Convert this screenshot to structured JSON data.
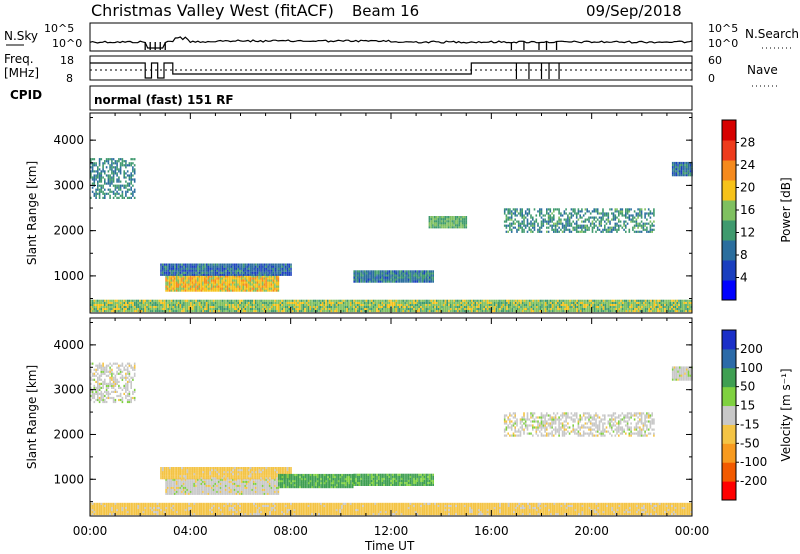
{
  "header": {
    "title": "Christmas Valley West (fitACF)",
    "beam": "Beam 16",
    "date": "09/Sep/2018"
  },
  "status_panels": {
    "nsky_label": "N.Sky",
    "nsky_ticks": [
      "10^5",
      "10^0"
    ],
    "nsearch_label": "N.Search",
    "nsearch_ticks": [
      "10^5",
      "10^0"
    ],
    "freq_label": [
      "Freq.",
      "[MHz]"
    ],
    "freq_ticks": [
      "18",
      "8"
    ],
    "nave_label": "Nave",
    "nave_ticks": [
      "60",
      "0"
    ],
    "cpid_label": "CPID",
    "cpid_value": "normal (fast) 151 RF"
  },
  "colors": {
    "power": [
      "#0000ff",
      "#1a3fbf",
      "#2b6e9e",
      "#3f9a6e",
      "#7fc060",
      "#f6c21a",
      "#f58a1d",
      "#ee3b1c",
      "#d60000"
    ],
    "velocity": [
      "#ff0000",
      "#f25a00",
      "#f79a1f",
      "#f4c445",
      "#c8c8c8",
      "#7fd140",
      "#3f9f52",
      "#2b6aa8",
      "#1a2fc8"
    ]
  },
  "chart_data": [
    {
      "type": "heatmap",
      "panel": "power",
      "ylabel": "Slant Range [km]",
      "xlabel": "Time UT",
      "x_ticks": [
        "00:00",
        "04:00",
        "08:00",
        "12:00",
        "16:00",
        "20:00",
        "00:00"
      ],
      "xlim_hours": [
        0,
        24
      ],
      "y_ticks": [
        1000,
        2000,
        3000,
        4000
      ],
      "ylim": [
        180,
        4600
      ],
      "colorbar_label": "Power [dB]",
      "colorbar_ticks": [
        4,
        8,
        12,
        16,
        20,
        24,
        28
      ],
      "colorbar_range": [
        0,
        32
      ],
      "features": [
        {
          "t": [
            0.0,
            1.8
          ],
          "r": [
            2700,
            3600
          ],
          "level": 12
        },
        {
          "t": [
            3.0,
            7.5
          ],
          "r": [
            650,
            1000
          ],
          "level": 22
        },
        {
          "t": [
            2.8,
            8.0
          ],
          "r": [
            1000,
            1250
          ],
          "level": 9
        },
        {
          "t": [
            10.5,
            13.7
          ],
          "r": [
            850,
            1100
          ],
          "level": 11
        },
        {
          "t": [
            16.5,
            22.5
          ],
          "r": [
            1950,
            2450
          ],
          "level": 13
        },
        {
          "t": [
            13.5,
            15.0
          ],
          "r": [
            2050,
            2300
          ],
          "level": 16
        },
        {
          "t": [
            23.2,
            24.0
          ],
          "r": [
            3200,
            3500
          ],
          "level": 11
        },
        {
          "t": [
            0.0,
            24.0
          ],
          "r": [
            200,
            450
          ],
          "level": 18
        }
      ]
    },
    {
      "type": "heatmap",
      "panel": "velocity",
      "ylabel": "Slant Range [km]",
      "xlabel": "Time UT",
      "x_ticks": [
        "00:00",
        "04:00",
        "08:00",
        "12:00",
        "16:00",
        "20:00",
        "00:00"
      ],
      "xlim_hours": [
        0,
        24
      ],
      "y_ticks": [
        1000,
        2000,
        3000,
        4000
      ],
      "ylim": [
        180,
        4600
      ],
      "colorbar_label": "Velocity [m s⁻¹]",
      "colorbar_ticks": [
        200,
        100,
        50,
        15,
        -15,
        -50,
        -100,
        -200
      ],
      "colorbar_range": [
        -250,
        250
      ],
      "features": [
        {
          "t": [
            0.0,
            1.8
          ],
          "r": [
            2700,
            3600
          ],
          "vel": 0
        },
        {
          "t": [
            3.0,
            7.5
          ],
          "r": [
            650,
            1000
          ],
          "vel": 0
        },
        {
          "t": [
            2.8,
            8.0
          ],
          "r": [
            1000,
            1250
          ],
          "vel": -30
        },
        {
          "t": [
            7.5,
            10.5
          ],
          "r": [
            800,
            1100
          ],
          "vel": 60
        },
        {
          "t": [
            10.5,
            13.7
          ],
          "r": [
            850,
            1100
          ],
          "vel": 60
        },
        {
          "t": [
            16.5,
            22.5
          ],
          "r": [
            1950,
            2450
          ],
          "vel": 0
        },
        {
          "t": [
            23.2,
            24.0
          ],
          "r": [
            3200,
            3500
          ],
          "vel": 0
        },
        {
          "t": [
            0.0,
            24.0
          ],
          "r": [
            200,
            450
          ],
          "vel": -30
        }
      ]
    }
  ]
}
